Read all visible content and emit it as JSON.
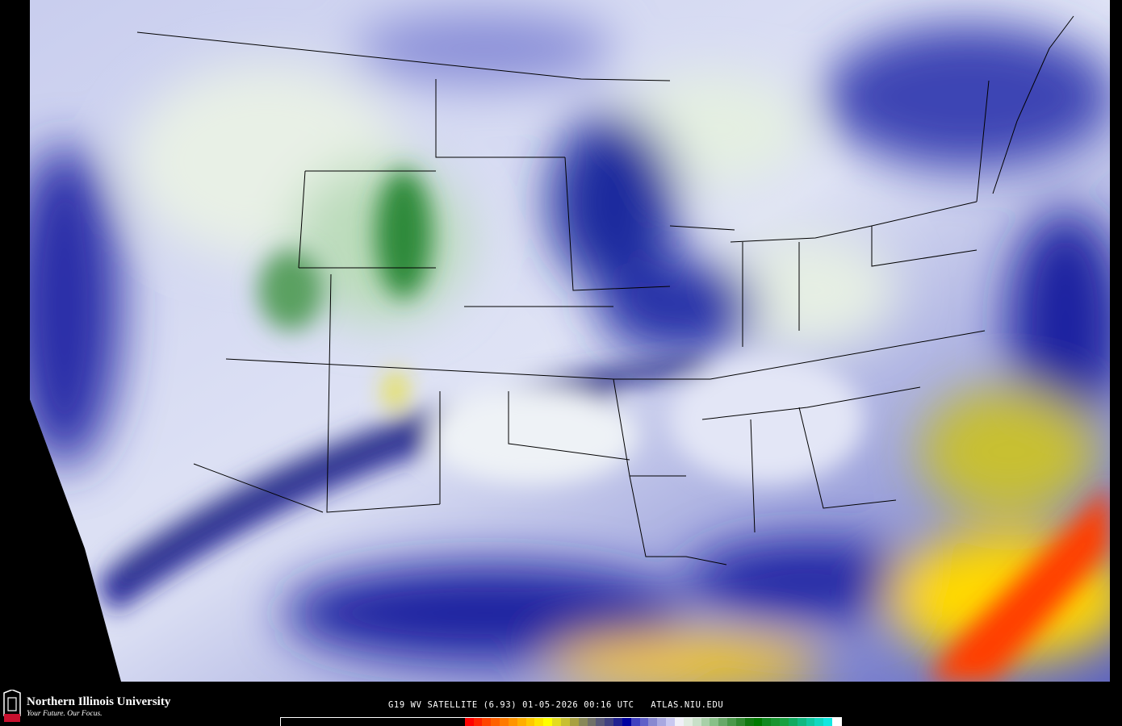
{
  "map": {
    "title": "G19 WV SATELLITE (6.93) 01-05-2026 00:16 UTC   ATLAS.NIU.EDU",
    "product": "water-vapor-satellite-imagery",
    "region": "contiguous-united-states",
    "colors": {
      "background": "#000000",
      "state_borders": "#000000",
      "dry_high": "#ff1a00",
      "dry": "#ffee00",
      "moderate": "#0a0a9a",
      "moist": "#f2f4fb",
      "very_moist": "#0b7a1e"
    }
  },
  "footer": {
    "university_name": "Northern Illinois University",
    "tagline": "Your Future. Our Focus.",
    "logo_text": "NIU",
    "caption": "G19 WV SATELLITE (6.93) 01-05-2026 00:16 UTC   ATLAS.NIU.EDU",
    "colorbar": [
      "#000000",
      "#000000",
      "#000000",
      "#000000",
      "#000000",
      "#000000",
      "#000000",
      "#000000",
      "#000000",
      "#000000",
      "#000000",
      "#000000",
      "#000000",
      "#000000",
      "#000000",
      "#000000",
      "#000000",
      "#000000",
      "#000000",
      "#000000",
      "#000000",
      "#ff0000",
      "#ff2200",
      "#ff4400",
      "#ff6000",
      "#ff7a00",
      "#ff9400",
      "#ffae00",
      "#ffc800",
      "#ffe400",
      "#ffff00",
      "#e4dc20",
      "#c8c030",
      "#a8a040",
      "#888858",
      "#707068",
      "#585878",
      "#404080",
      "#202090",
      "#0000a0",
      "#4040c0",
      "#6060c8",
      "#8888d0",
      "#a8a8e0",
      "#c8c8f0",
      "#f0f0f8",
      "#e0ece0",
      "#c8e0c8",
      "#a8d0a8",
      "#88c088",
      "#68a868",
      "#4a984a",
      "#308830",
      "#107810",
      "#007800",
      "#108820",
      "#189430",
      "#18a040",
      "#10aa60",
      "#10b880",
      "#10c8a0",
      "#10d8c0",
      "#10e8e0",
      "#ffffff"
    ]
  }
}
